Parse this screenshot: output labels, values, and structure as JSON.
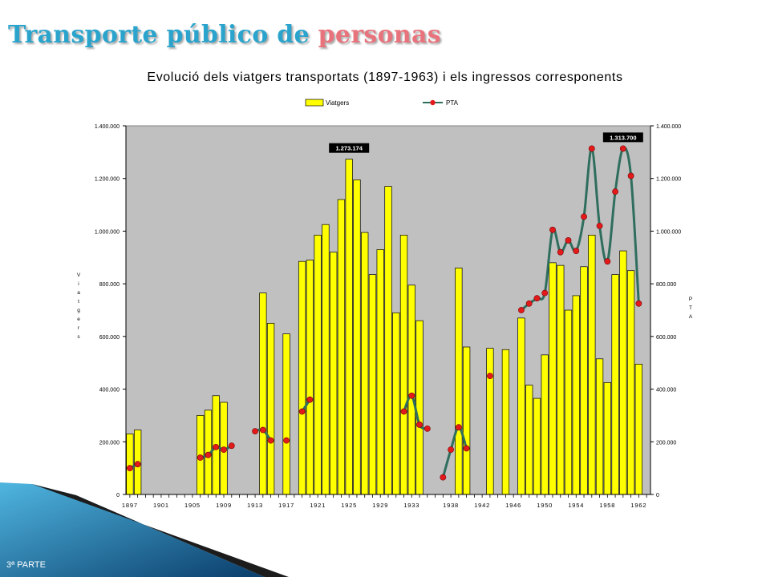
{
  "slide": {
    "title_part1": "Transporte público de ",
    "title_part2": "personas",
    "footer": "3ª PARTE",
    "accent_blue": "#2aa4cc",
    "accent_pink": "#e8737c"
  },
  "chart_data": {
    "type": "bar",
    "title": "Evolució dels viatgers transportats (1897-1963) i els ingressos corresponents",
    "ylabel_left": "Viatgers",
    "ylabel_right": "PTA",
    "ylim": [
      0,
      1400000
    ],
    "yticks": [
      "0",
      "200.000",
      "400.000",
      "600.000",
      "800.000",
      "1.000.000",
      "1.200.000",
      "1.400.000"
    ],
    "xlim": [
      1897,
      1963
    ],
    "xticks": [
      "1897",
      "1901",
      "1905",
      "1909",
      "1913",
      "1917",
      "1921",
      "1925",
      "1929",
      "1933",
      "1938",
      "1942",
      "1946",
      "1950",
      "1954",
      "1958",
      "1962"
    ],
    "grid": false,
    "plot_bg": "#c0c0c0",
    "legend_position": "top-center",
    "series": [
      {
        "name": "Viatgers",
        "kind": "bar",
        "color": "#ffff00",
        "points": [
          [
            1897,
            230000
          ],
          [
            1898,
            245000
          ],
          [
            1906,
            300000
          ],
          [
            1907,
            320000
          ],
          [
            1908,
            375000
          ],
          [
            1909,
            350000
          ],
          [
            1914,
            765000
          ],
          [
            1915,
            650000
          ],
          [
            1917,
            610000
          ],
          [
            1919,
            885000
          ],
          [
            1920,
            890000
          ],
          [
            1921,
            985000
          ],
          [
            1922,
            1025000
          ],
          [
            1923,
            920000
          ],
          [
            1924,
            1120000
          ],
          [
            1925,
            1273174
          ],
          [
            1926,
            1195000
          ],
          [
            1927,
            995000
          ],
          [
            1928,
            835000
          ],
          [
            1929,
            930000
          ],
          [
            1930,
            1170000
          ],
          [
            1931,
            690000
          ],
          [
            1932,
            985000
          ],
          [
            1933,
            795000
          ],
          [
            1934,
            660000
          ],
          [
            1939,
            860000
          ],
          [
            1940,
            560000
          ],
          [
            1943,
            555000
          ],
          [
            1945,
            550000
          ],
          [
            1947,
            670000
          ],
          [
            1948,
            415000
          ],
          [
            1949,
            365000
          ],
          [
            1950,
            530000
          ],
          [
            1951,
            880000
          ],
          [
            1952,
            870000
          ],
          [
            1953,
            700000
          ],
          [
            1954,
            755000
          ],
          [
            1955,
            865000
          ],
          [
            1956,
            985000
          ],
          [
            1957,
            515000
          ],
          [
            1958,
            425000
          ],
          [
            1959,
            835000
          ],
          [
            1960,
            925000
          ],
          [
            1961,
            850000
          ],
          [
            1962,
            495000
          ]
        ]
      },
      {
        "name": "PTA",
        "kind": "line",
        "color": "#2f6e5e",
        "marker_color": "#e31a1c",
        "segments": [
          [
            [
              1897,
              100000
            ],
            [
              1898,
              115000
            ]
          ],
          [
            [
              1906,
              140000
            ],
            [
              1907,
              150000
            ],
            [
              1908,
              180000
            ],
            [
              1909,
              170000
            ],
            [
              1910,
              185000
            ]
          ],
          [
            [
              1913,
              240000
            ],
            [
              1914,
              245000
            ],
            [
              1915,
              205000
            ]
          ],
          [
            [
              1917,
              205000
            ]
          ],
          [
            [
              1919,
              315000
            ],
            [
              1920,
              360000
            ]
          ],
          [
            [
              1932,
              315000
            ],
            [
              1933,
              375000
            ],
            [
              1934,
              265000
            ],
            [
              1935,
              250000
            ]
          ],
          [
            [
              1937,
              65000
            ],
            [
              1938,
              170000
            ],
            [
              1939,
              255000
            ],
            [
              1940,
              175000
            ]
          ],
          [
            [
              1943,
              450000
            ]
          ],
          [
            [
              1947,
              700000
            ],
            [
              1948,
              725000
            ],
            [
              1949,
              745000
            ],
            [
              1950,
              765000
            ],
            [
              1951,
              1005000
            ],
            [
              1952,
              920000
            ],
            [
              1953,
              965000
            ],
            [
              1954,
              925000
            ],
            [
              1955,
              1055000
            ],
            [
              1956,
              1313700
            ],
            [
              1957,
              1020000
            ],
            [
              1958,
              885000
            ],
            [
              1959,
              1150000
            ],
            [
              1960,
              1313700
            ],
            [
              1961,
              1210000
            ],
            [
              1962,
              725000
            ]
          ]
        ]
      }
    ],
    "annotations": [
      {
        "text": "1.273.174",
        "x": 1925,
        "y": 1273174
      },
      {
        "text": "1.313.700",
        "x": 1960,
        "y": 1313700
      }
    ]
  }
}
